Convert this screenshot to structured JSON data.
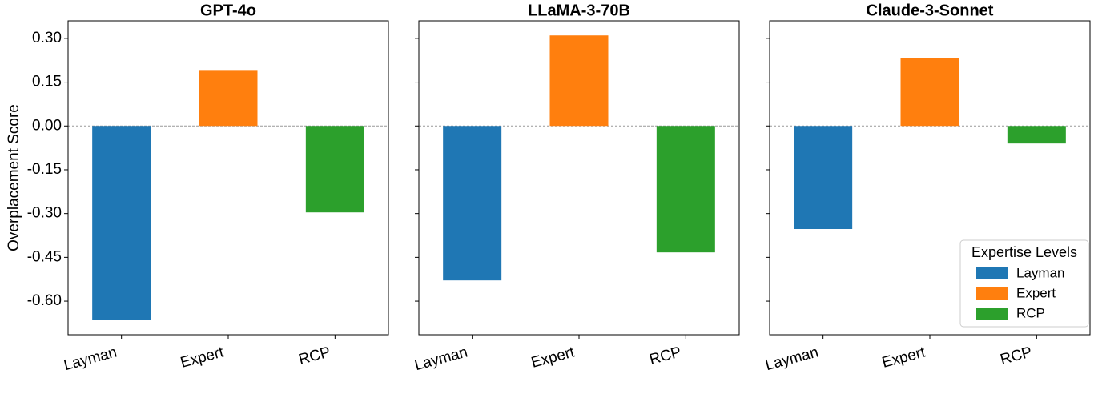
{
  "chart_data": [
    {
      "type": "bar",
      "title": "GPT-4o",
      "ylabel": "Overplacement Score",
      "categories": [
        "Layman",
        "Expert",
        "RCP"
      ],
      "values": [
        -0.663,
        0.189,
        -0.296
      ],
      "colors": [
        "#1f77b4",
        "#ff7f0e",
        "#2ca02c"
      ],
      "ylim": [
        -0.715,
        0.36
      ],
      "yticks": [
        {
          "value": -0.6,
          "label": "-0.60"
        },
        {
          "value": -0.45,
          "label": "-0.45"
        },
        {
          "value": -0.3,
          "label": "-0.30"
        },
        {
          "value": -0.15,
          "label": "-0.15"
        },
        {
          "value": 0,
          "label": "0.00"
        },
        {
          "value": 0.15,
          "label": "0.15"
        },
        {
          "value": 0.3,
          "label": "0.30"
        }
      ]
    },
    {
      "type": "bar",
      "title": "LLaMA-3-70B",
      "categories": [
        "Layman",
        "Expert",
        "RCP"
      ],
      "values": [
        -0.529,
        0.31,
        -0.433
      ],
      "colors": [
        "#1f77b4",
        "#ff7f0e",
        "#2ca02c"
      ]
    },
    {
      "type": "bar",
      "title": "Claude-3-Sonnet",
      "categories": [
        "Layman",
        "Expert",
        "RCP"
      ],
      "values": [
        -0.353,
        0.233,
        -0.06
      ],
      "colors": [
        "#1f77b4",
        "#ff7f0e",
        "#2ca02c"
      ],
      "legend": {
        "title": "Expertise Levels",
        "loc": "lower right"
      }
    }
  ]
}
